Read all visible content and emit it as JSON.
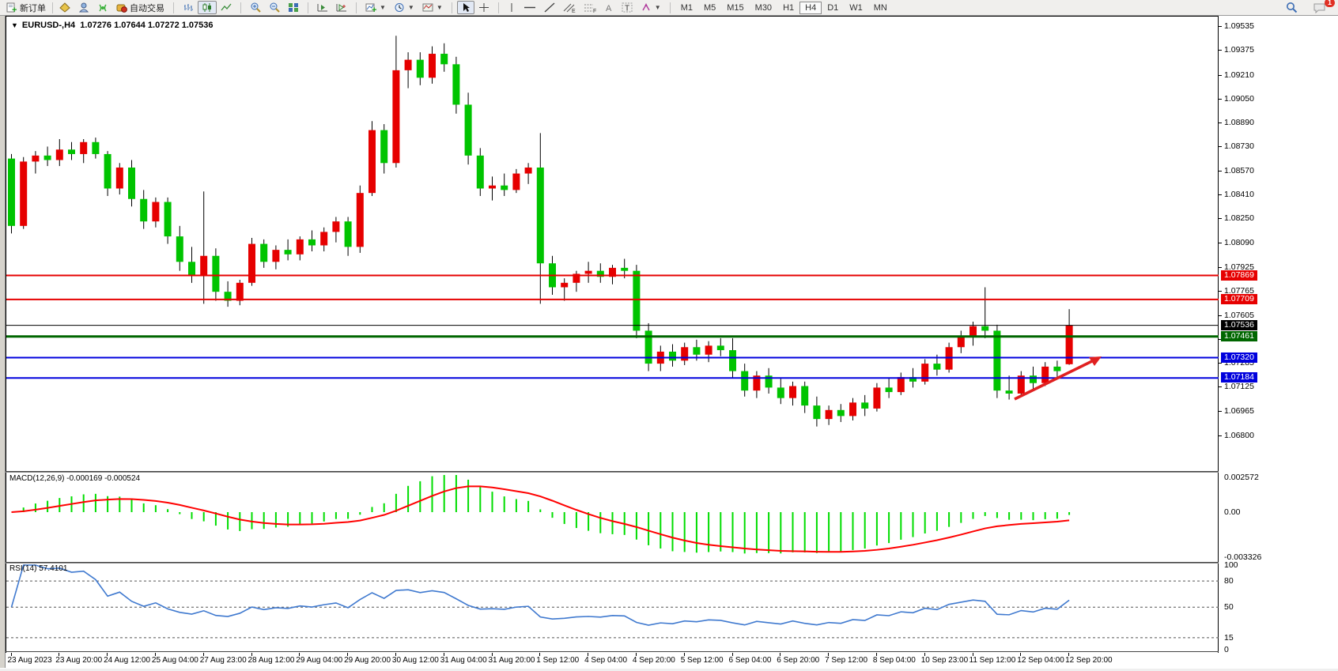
{
  "toolbar": {
    "new_order": "新订单",
    "auto_trading": "自动交易",
    "timeframes": [
      "M1",
      "M5",
      "M15",
      "M30",
      "H1",
      "H4",
      "D1",
      "W1",
      "MN"
    ],
    "active_timeframe": "H4",
    "notification_count": "1"
  },
  "chart": {
    "title_symbol": "EURUSD-,H4",
    "title_ohlc": "1.07276 1.07644 1.07272 1.07536",
    "macd_label": "MACD(12,26,9) -0.000169 -0.000524",
    "rsi_label": "RSI(14) 57.4101"
  },
  "chart_data": {
    "type": "candlestick",
    "symbol": "EURUSD-",
    "timeframe": "H4",
    "ohlc_display": {
      "open": "1.07276",
      "high": "1.07644",
      "low": "1.07272",
      "close": "1.07536"
    },
    "price_range": [
      1.068,
      1.09535
    ],
    "bull_color": "#e60000",
    "bear_color": "#00c400",
    "wick_color": "#000000",
    "y_axis_ticks": [
      "1.09535",
      "1.09375",
      "1.09210",
      "1.09050",
      "1.08890",
      "1.08730",
      "1.08570",
      "1.08410",
      "1.08250",
      "1.08090",
      "1.07925",
      "1.07765",
      "1.07605",
      "1.07445",
      "1.07285",
      "1.07125",
      "1.06965",
      "1.06800"
    ],
    "x_labels": [
      "23 Aug 2023",
      "23 Aug 20:00",
      "24 Aug 12:00",
      "25 Aug 04:00",
      "27 Aug 23:00",
      "28 Aug 12:00",
      "29 Aug 04:00",
      "29 Aug 20:00",
      "30 Aug 12:00",
      "31 Aug 04:00",
      "31 Aug 20:00",
      "1 Sep 12:00",
      "4 Sep 04:00",
      "4 Sep 20:00",
      "5 Sep 12:00",
      "6 Sep 04:00",
      "6 Sep 20:00",
      "7 Sep 12:00",
      "8 Sep 04:00",
      "10 Sep 23:00",
      "11 Sep 12:00",
      "12 Sep 04:00",
      "12 Sep 20:00"
    ],
    "candles": [
      [
        1.0865,
        1.0868,
        1.0815,
        1.082
      ],
      [
        1.082,
        1.0866,
        1.0818,
        1.0863
      ],
      [
        1.0863,
        1.087,
        1.0855,
        1.0867
      ],
      [
        1.0867,
        1.0873,
        1.086,
        1.0864
      ],
      [
        1.0864,
        1.0878,
        1.086,
        1.0871
      ],
      [
        1.0871,
        1.0876,
        1.0864,
        1.0868
      ],
      [
        1.0868,
        1.0878,
        1.0862,
        1.0876
      ],
      [
        1.0876,
        1.0879,
        1.0865,
        1.0868
      ],
      [
        1.0868,
        1.087,
        1.084,
        1.0845
      ],
      [
        1.0845,
        1.0862,
        1.0841,
        1.0859
      ],
      [
        1.0859,
        1.0864,
        1.0833,
        1.0838
      ],
      [
        1.0838,
        1.0844,
        1.0818,
        1.0823
      ],
      [
        1.0823,
        1.0839,
        1.0819,
        1.0836
      ],
      [
        1.0836,
        1.0839,
        1.0808,
        1.0813
      ],
      [
        1.0813,
        1.082,
        1.079,
        1.0796
      ],
      [
        1.0796,
        1.0806,
        1.0782,
        1.0787
      ],
      [
        1.0787,
        1.0843,
        1.0768,
        1.08
      ],
      [
        1.08,
        1.0805,
        1.077,
        1.0776
      ],
      [
        1.0776,
        1.0783,
        1.0766,
        1.077
      ],
      [
        1.077,
        1.0784,
        1.0767,
        1.0782
      ],
      [
        1.0782,
        1.0812,
        1.078,
        1.0808
      ],
      [
        1.0808,
        1.0811,
        1.0792,
        1.0796
      ],
      [
        1.0796,
        1.0807,
        1.0791,
        1.0804
      ],
      [
        1.0804,
        1.0811,
        1.0797,
        1.0801
      ],
      [
        1.0801,
        1.0813,
        1.0797,
        1.0811
      ],
      [
        1.0811,
        1.0817,
        1.0803,
        1.0807
      ],
      [
        1.0807,
        1.0819,
        1.0803,
        1.0816
      ],
      [
        1.0816,
        1.0826,
        1.0809,
        1.0823
      ],
      [
        1.0823,
        1.0826,
        1.08,
        1.0806
      ],
      [
        1.0806,
        1.0847,
        1.0802,
        1.0842
      ],
      [
        1.0842,
        1.089,
        1.084,
        1.0884
      ],
      [
        1.0884,
        1.0888,
        1.0855,
        1.0862
      ],
      [
        1.0862,
        1.0947,
        1.0859,
        1.0924
      ],
      [
        1.0924,
        1.0936,
        1.0912,
        1.0931
      ],
      [
        1.0931,
        1.0936,
        1.0914,
        1.0919
      ],
      [
        1.0919,
        1.094,
        1.0915,
        1.0935
      ],
      [
        1.0935,
        1.0942,
        1.0923,
        1.0928
      ],
      [
        1.0928,
        1.0933,
        1.0895,
        1.0901
      ],
      [
        1.0901,
        1.0909,
        1.0861,
        1.0867
      ],
      [
        1.0867,
        1.0872,
        1.084,
        1.0845
      ],
      [
        1.0845,
        1.0853,
        1.0837,
        1.0847
      ],
      [
        1.0847,
        1.0855,
        1.084,
        1.0844
      ],
      [
        1.0844,
        1.0858,
        1.0842,
        1.0855
      ],
      [
        1.0855,
        1.0862,
        1.0848,
        1.0859
      ],
      [
        1.0859,
        1.0882,
        1.0768,
        1.0795
      ],
      [
        1.0795,
        1.08,
        1.0774,
        1.0779
      ],
      [
        1.0779,
        1.0785,
        1.077,
        1.0782
      ],
      [
        1.0782,
        1.079,
        1.0776,
        1.0788
      ],
      [
        1.0788,
        1.0796,
        1.0782,
        1.079
      ],
      [
        1.079,
        1.0795,
        1.0782,
        1.0786
      ],
      [
        1.0786,
        1.0794,
        1.0781,
        1.0792
      ],
      [
        1.0792,
        1.0798,
        1.0785,
        1.079
      ],
      [
        1.079,
        1.0794,
        1.0745,
        1.075
      ],
      [
        1.075,
        1.0755,
        1.0723,
        1.0728
      ],
      [
        1.0728,
        1.074,
        1.0723,
        1.0736
      ],
      [
        1.0736,
        1.0741,
        1.0726,
        1.073
      ],
      [
        1.073,
        1.0742,
        1.0727,
        1.0739
      ],
      [
        1.0739,
        1.0744,
        1.073,
        1.0734
      ],
      [
        1.0734,
        1.0743,
        1.0729,
        1.074
      ],
      [
        1.074,
        1.0745,
        1.0733,
        1.0737
      ],
      [
        1.0737,
        1.0745,
        1.0718,
        1.0723
      ],
      [
        1.0723,
        1.0728,
        1.0706,
        1.071
      ],
      [
        1.071,
        1.0723,
        1.0705,
        1.072
      ],
      [
        1.072,
        1.0725,
        1.0708,
        1.0712
      ],
      [
        1.0712,
        1.0718,
        1.0701,
        1.0705
      ],
      [
        1.0705,
        1.0716,
        1.07,
        1.0713
      ],
      [
        1.0713,
        1.0716,
        1.0695,
        1.07
      ],
      [
        1.07,
        1.0706,
        1.0686,
        1.0691
      ],
      [
        1.0691,
        1.07,
        1.0687,
        1.0697
      ],
      [
        1.0697,
        1.0701,
        1.0689,
        1.0693
      ],
      [
        1.0693,
        1.0705,
        1.069,
        1.0702
      ],
      [
        1.0702,
        1.0707,
        1.0693,
        1.0698
      ],
      [
        1.0698,
        1.0715,
        1.0696,
        1.0712
      ],
      [
        1.0712,
        1.0718,
        1.0705,
        1.0709
      ],
      [
        1.0709,
        1.0722,
        1.0707,
        1.0719
      ],
      [
        1.0719,
        1.0725,
        1.0712,
        1.0716
      ],
      [
        1.0716,
        1.0731,
        1.0714,
        1.0728
      ],
      [
        1.0728,
        1.0734,
        1.072,
        1.0724
      ],
      [
        1.0724,
        1.0742,
        1.0722,
        1.0739
      ],
      [
        1.0739,
        1.075,
        1.0735,
        1.0746
      ],
      [
        1.0746,
        1.0756,
        1.074,
        1.0753
      ],
      [
        1.0753,
        1.0779,
        1.0745,
        1.075
      ],
      [
        1.075,
        1.0754,
        1.0705,
        1.071
      ],
      [
        1.071,
        1.072,
        1.0704,
        1.0708
      ],
      [
        1.0708,
        1.0723,
        1.0706,
        1.072
      ],
      [
        1.072,
        1.0726,
        1.0711,
        1.0715
      ],
      [
        1.0715,
        1.0729,
        1.0713,
        1.0726
      ],
      [
        1.0726,
        1.073,
        1.0718,
        1.0723
      ],
      [
        1.07276,
        1.07644,
        1.07272,
        1.07536
      ]
    ],
    "hlines": [
      {
        "label": "1.07869",
        "price": 1.07869,
        "color": "#e60000",
        "width": 2
      },
      {
        "label": "1.07709",
        "price": 1.07709,
        "color": "#e60000",
        "width": 2
      },
      {
        "label": "1.07536",
        "price": 1.07536,
        "color": "#000000",
        "width": 1
      },
      {
        "label": "1.07461",
        "price": 1.07461,
        "color": "#006600",
        "width": 3
      },
      {
        "label": "1.07320",
        "price": 1.0732,
        "color": "#0000dd",
        "width": 2
      },
      {
        "label": "1.07184",
        "price": 1.07184,
        "color": "#0000dd",
        "width": 2
      }
    ],
    "macd": {
      "params": [
        12,
        26,
        9
      ],
      "main_value": -0.000169,
      "signal_value": -0.000524,
      "scale_labels": [
        "0.002572",
        "0.00",
        "-0.003326"
      ],
      "scale_values": [
        0.002572,
        0.0,
        -0.003326
      ],
      "bar_color": "#00dd00",
      "signal_color": "#ff0000"
    },
    "rsi": {
      "period": 14,
      "value": 57.4101,
      "levels": [
        80,
        50,
        15
      ],
      "scale_labels": [
        "100",
        "80",
        "50",
        "15",
        "0"
      ],
      "scale_values": [
        100,
        80,
        50,
        15,
        0
      ],
      "line_color": "#3f79cf"
    },
    "annotation_arrow": {
      "from": [
        1275,
        480
      ],
      "to": [
        1385,
        426
      ],
      "color": "#e02020"
    }
  }
}
